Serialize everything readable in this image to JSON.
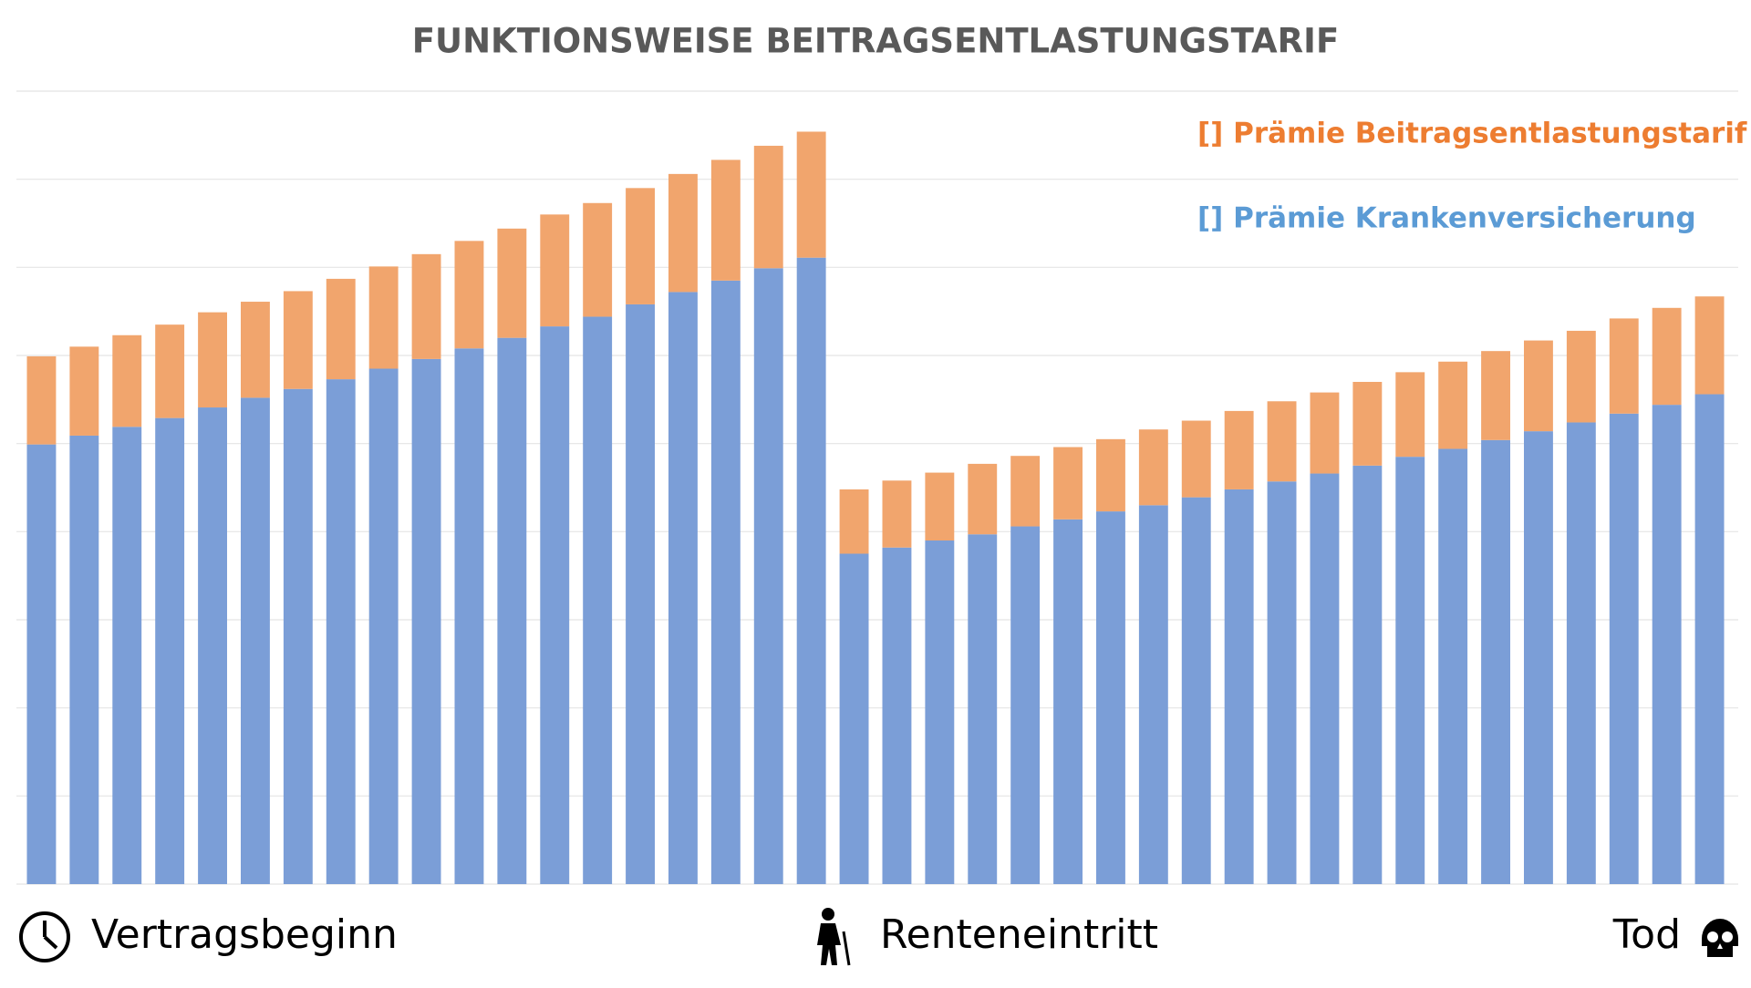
{
  "chart_data": {
    "type": "stacked_bar",
    "title": "FUNKTIONSWEISE BEITRAGSENTLASTUNGSTARIF",
    "categories": [
      null,
      null,
      null,
      null,
      null,
      null,
      null,
      null,
      null,
      null,
      null,
      null,
      null,
      null,
      null,
      null,
      null,
      null,
      null,
      null,
      null,
      null,
      null,
      null,
      null,
      null,
      null,
      null,
      null,
      null,
      null,
      null,
      null,
      null,
      null,
      null,
      null,
      null,
      null,
      null
    ],
    "series": [
      {
        "name": "[] Prämie Krankenversicherung",
        "color": "#7b9ed7",
        "values": [
          4.99,
          5.09,
          5.19,
          5.29,
          5.41,
          5.52,
          5.62,
          5.73,
          5.85,
          5.96,
          6.08,
          6.2,
          6.33,
          6.44,
          6.58,
          6.72,
          6.85,
          6.99,
          7.11,
          3.75,
          3.82,
          3.9,
          3.97,
          4.06,
          4.14,
          4.23,
          4.3,
          4.39,
          4.48,
          4.57,
          4.66,
          4.75,
          4.85,
          4.94,
          5.04,
          5.14,
          5.24,
          5.34,
          5.44,
          5.56
        ]
      },
      {
        "name": "[] Prämie Beitragsentlastungstarif",
        "color": "#f1a56d",
        "values": [
          1.0,
          1.01,
          1.04,
          1.06,
          1.08,
          1.09,
          1.11,
          1.14,
          1.16,
          1.19,
          1.22,
          1.24,
          1.27,
          1.29,
          1.32,
          1.34,
          1.37,
          1.39,
          1.43,
          0.73,
          0.76,
          0.77,
          0.8,
          0.8,
          0.82,
          0.82,
          0.86,
          0.87,
          0.89,
          0.91,
          0.92,
          0.95,
          0.96,
          0.99,
          1.01,
          1.03,
          1.04,
          1.08,
          1.1,
          1.11
        ]
      }
    ],
    "legend_colors": [
      "#5b9bd5",
      "#ed7d31"
    ],
    "ylim": [
      0,
      9
    ],
    "yticks": [
      0,
      1,
      2,
      3,
      4,
      5,
      6,
      7,
      8,
      9
    ],
    "grid": true,
    "annotations": [
      "Vertragsbeginn",
      "Renteneintritt",
      "Tod"
    ]
  }
}
